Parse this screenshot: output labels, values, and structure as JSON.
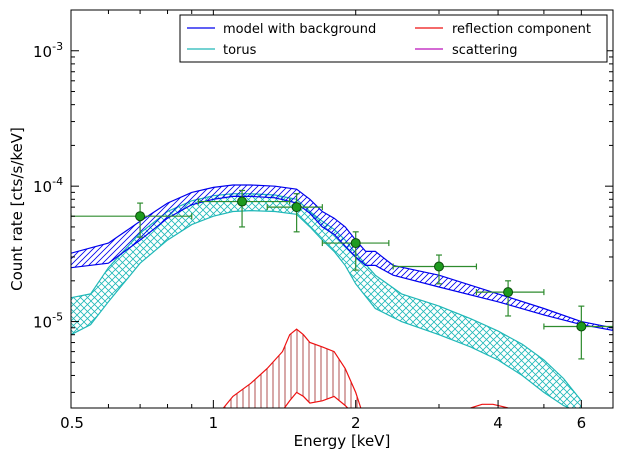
{
  "chart_data": {
    "type": "line",
    "title": "",
    "xlabel": "Energy [keV]",
    "ylabel": "Count rate [cts/s/keV]",
    "xscale": "log",
    "yscale": "log",
    "xlim": [
      0.5,
      7.0
    ],
    "ylim": [
      2.3e-06,
      0.002
    ],
    "x_ticks": [
      {
        "value": 0.5,
        "label": "0.5"
      },
      {
        "value": 1,
        "label": "1"
      },
      {
        "value": 2,
        "label": "2"
      },
      {
        "value": 4,
        "label": "4"
      },
      {
        "value": 6,
        "label": "6"
      }
    ],
    "y_ticks": [
      {
        "value": 1e-05,
        "base": "10",
        "exp": "-5"
      },
      {
        "value": 0.0001,
        "base": "10",
        "exp": "-4"
      },
      {
        "value": 0.001,
        "base": "10",
        "exp": "-3"
      }
    ],
    "legend": {
      "placement": "top-right",
      "columns": 2,
      "entries": [
        {
          "label": "model with background",
          "color": "#0000ee"
        },
        {
          "label": "torus",
          "color": "#20b8b8"
        },
        {
          "label": "reflection component",
          "color": "#ee1111"
        },
        {
          "label": "scattering",
          "color": "#bb11bb"
        }
      ]
    },
    "series": [
      {
        "name": "model with background",
        "color": "#0000ee",
        "hatch": "diagonal",
        "x": [
          0.5,
          0.6,
          0.7,
          0.8,
          0.9,
          1.0,
          1.1,
          1.2,
          1.35,
          1.5,
          1.6,
          1.7,
          1.8,
          1.9,
          2.0,
          2.1,
          2.2,
          2.4,
          3.0,
          4.0,
          5.0,
          6.0,
          7.0
        ],
        "upper": [
          3.2e-05,
          3.8e-05,
          5.5e-05,
          7.5e-05,
          9e-05,
          9.8e-05,
          0.000102,
          0.000102,
          0.0001,
          9.5e-05,
          8e-05,
          6.5e-05,
          5.8e-05,
          5e-05,
          4e-05,
          3.3e-05,
          3.3e-05,
          2.6e-05,
          2.2e-05,
          1.6e-05,
          1.25e-05,
          1e-05,
          9e-06
        ],
        "lower": [
          2.5e-05,
          2.7e-05,
          4e-05,
          5.8e-05,
          7.3e-05,
          8e-05,
          8.4e-05,
          8.4e-05,
          8.2e-05,
          7.5e-05,
          6.3e-05,
          5e-05,
          4.4e-05,
          3.6e-05,
          3e-05,
          2.6e-05,
          2.6e-05,
          2.2e-05,
          1.8e-05,
          1.4e-05,
          1.12e-05,
          9.5e-06,
          8.6e-06
        ]
      },
      {
        "name": "torus",
        "color": "#20b8b8",
        "hatch": "cross",
        "x": [
          0.5,
          0.55,
          0.6,
          0.7,
          0.8,
          0.9,
          1.0,
          1.1,
          1.2,
          1.35,
          1.5,
          1.6,
          1.7,
          1.8,
          1.9,
          2.0,
          2.2,
          2.5,
          3.0,
          3.5,
          4.0,
          4.5,
          5.0,
          5.5,
          6.0
        ],
        "upper": [
          1.5e-05,
          1.6e-05,
          2.5e-05,
          4.5e-05,
          6.5e-05,
          7.8e-05,
          8.5e-05,
          8.8e-05,
          8.8e-05,
          8.6e-05,
          8e-05,
          6.5e-05,
          5.5e-05,
          4.8e-05,
          4e-05,
          3.2e-05,
          2.2e-05,
          1.6e-05,
          1.3e-05,
          1.05e-05,
          8.5e-06,
          6.8e-06,
          5.2e-06,
          3.8e-06,
          2.6e-06
        ],
        "lower": [
          8e-06,
          9.5e-06,
          1.4e-05,
          2.7e-05,
          4e-05,
          5.2e-05,
          6e-05,
          6.5e-05,
          6.6e-05,
          6.5e-05,
          6.2e-05,
          5e-05,
          4e-05,
          3.3e-05,
          2.6e-05,
          1.9e-05,
          1.25e-05,
          1e-05,
          8e-06,
          6.5e-06,
          5.2e-06,
          4e-06,
          3e-06,
          2.4e-06,
          2.1e-06
        ]
      },
      {
        "name": "reflection component",
        "color": "#ee1111",
        "hatch": "vertical",
        "x": [
          1.05,
          1.1,
          1.2,
          1.3,
          1.4,
          1.45,
          1.5,
          1.55,
          1.6,
          1.7,
          1.8,
          1.9,
          2.0,
          2.05
        ],
        "upper": [
          2.3e-06,
          2.8e-06,
          3.5e-06,
          4.5e-06,
          6e-06,
          8e-06,
          8.8e-06,
          8e-06,
          7e-06,
          6.5e-06,
          6e-06,
          4.5e-06,
          3e-06,
          2.3e-06
        ],
        "lower": [
          2e-06,
          2e-06,
          2e-06,
          2e-06,
          2.2e-06,
          2.6e-06,
          3e-06,
          2.8e-06,
          2.5e-06,
          2.6e-06,
          2.8e-06,
          2.4e-06,
          2e-06,
          2e-06
        ],
        "tail_x": [
          3.5,
          3.7,
          3.9,
          4.1,
          4.2
        ],
        "tail_y": [
          2.3e-06,
          2.45e-06,
          2.45e-06,
          2.35e-06,
          2.3e-06
        ]
      },
      {
        "name": "scattering",
        "color": "#bb11bb",
        "x": [],
        "y": []
      }
    ],
    "data_points": {
      "color": "#2e8b2e",
      "points": [
        {
          "x": 0.7,
          "y": 6e-05,
          "xerr": [
            0.5,
            0.9
          ],
          "yerr": [
            4.2e-05,
            7.5e-05
          ]
        },
        {
          "x": 1.15,
          "y": 7.7e-05,
          "xerr": [
            0.93,
            1.45
          ],
          "yerr": [
            5e-05,
            9.3e-05
          ]
        },
        {
          "x": 1.5,
          "y": 7e-05,
          "xerr": [
            1.3,
            1.7
          ],
          "yerr": [
            4.6e-05,
            8.8e-05
          ]
        },
        {
          "x": 2.0,
          "y": 3.8e-05,
          "xerr": [
            1.7,
            2.35
          ],
          "yerr": [
            2.4e-05,
            4.6e-05
          ]
        },
        {
          "x": 3.0,
          "y": 2.55e-05,
          "xerr": [
            2.4,
            3.6
          ],
          "yerr": [
            1.9e-05,
            3.1e-05
          ]
        },
        {
          "x": 4.2,
          "y": 1.65e-05,
          "xerr": [
            3.6,
            5.0
          ],
          "yerr": [
            1.1e-05,
            2e-05
          ]
        },
        {
          "x": 6.0,
          "y": 9.2e-06,
          "xerr": [
            5.0,
            7.0
          ],
          "yerr": [
            5.3e-06,
            1.3e-05
          ]
        }
      ]
    }
  }
}
